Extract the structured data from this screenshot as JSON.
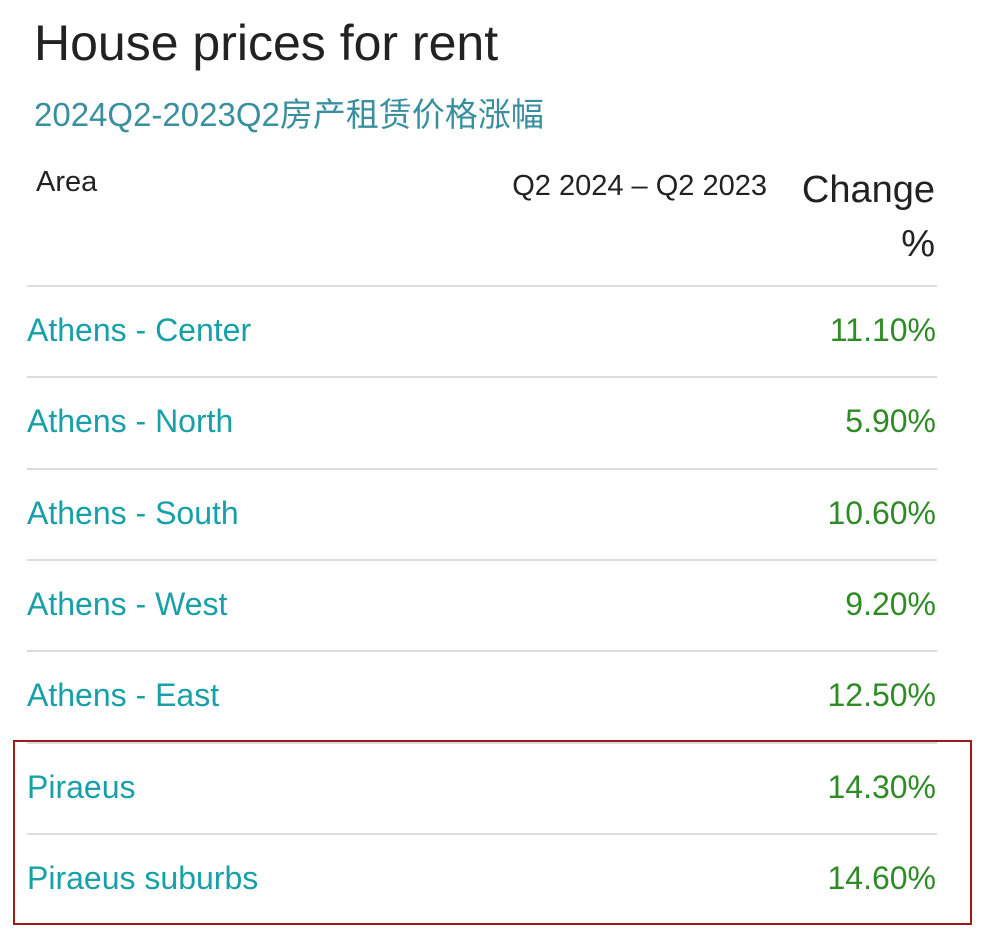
{
  "header": {
    "title": "House prices for rent",
    "subtitle": "2024Q2-2023Q2房产租赁价格涨幅"
  },
  "table": {
    "columns": [
      "Area",
      "Q2 2024 – Q2 2023",
      "Change %"
    ],
    "rows": [
      [
        "Athens - Center",
        "11.10%"
      ],
      [
        "Athens - North",
        "5.90%"
      ],
      [
        "Athens - South",
        "10.60%"
      ],
      [
        "Athens - West",
        "9.20%"
      ],
      [
        "Athens - East",
        "12.50%"
      ],
      [
        "Piraeus",
        "14.30%"
      ],
      [
        "Piraeus suburbs",
        "14.60%"
      ]
    ]
  }
}
